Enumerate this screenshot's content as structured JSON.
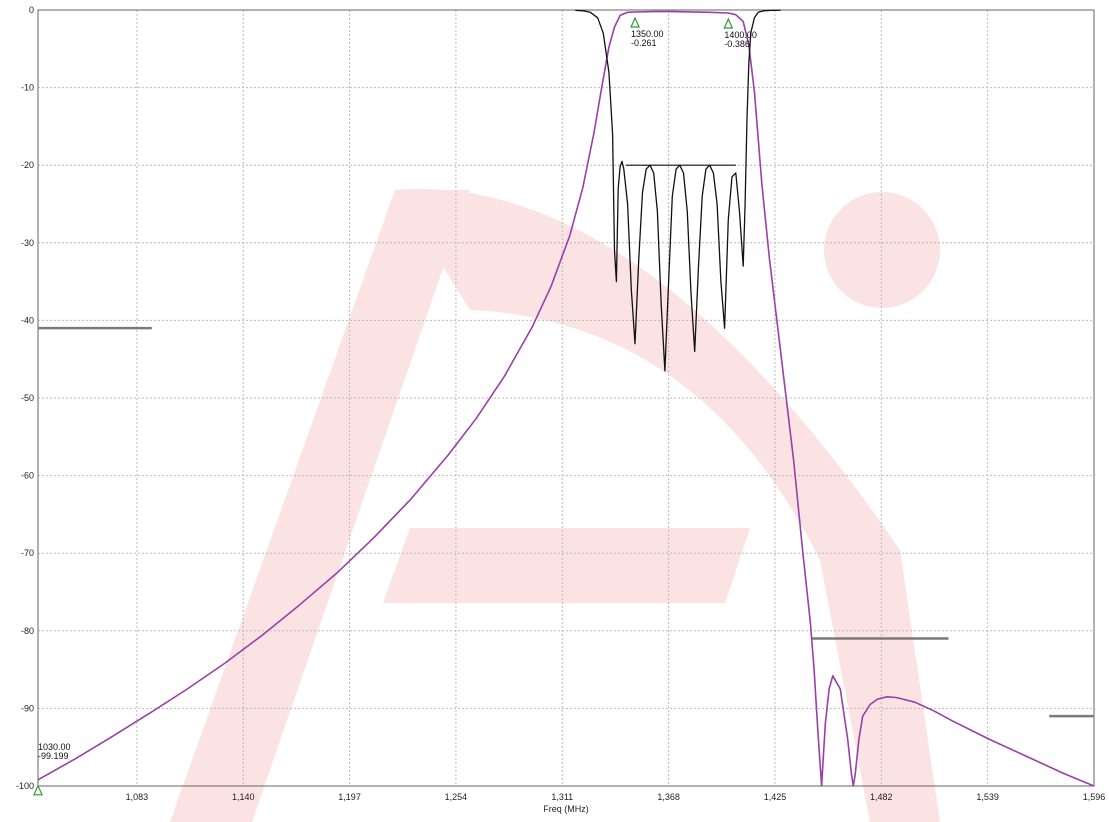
{
  "chart_data": {
    "type": "line",
    "title": "",
    "xlabel": "Freq (MHz)",
    "ylabel": "",
    "xlim": [
      1030,
      1596
    ],
    "ylim": [
      -100,
      0
    ],
    "grid": true,
    "x_ticks": [
      "1,083",
      "1,140",
      "1,197",
      "1,254",
      "1,311",
      "1,368",
      "1,425",
      "1,482",
      "1,539",
      "1,596"
    ],
    "x_tick_values": [
      1083,
      1140,
      1197,
      1254,
      1311,
      1368,
      1425,
      1482,
      1539,
      1596
    ],
    "y_ticks": [
      "0",
      "-10",
      "-20",
      "-30",
      "-40",
      "-50",
      "-60",
      "-70",
      "-80",
      "-90",
      "-100"
    ],
    "y_tick_values": [
      0,
      -10,
      -20,
      -30,
      -40,
      -50,
      -60,
      -70,
      -80,
      -90,
      -100
    ],
    "colors": {
      "transmission": "#9a3fa8",
      "reflection": "#111111",
      "spec": "#7a7a7a",
      "marker": "#2f9a2f",
      "watermark": "#fbe3e3",
      "grid": "#b9b9b9"
    },
    "series": [
      {
        "key": "transmission",
        "x": [
          1030,
          1050,
          1070,
          1090,
          1110,
          1130,
          1150,
          1170,
          1190,
          1210,
          1230,
          1250,
          1265,
          1280,
          1295,
          1305,
          1315,
          1322,
          1328,
          1332,
          1336,
          1339,
          1342,
          1346,
          1350,
          1360,
          1370,
          1380,
          1390,
          1400,
          1404,
          1408,
          1411,
          1414,
          1418,
          1422,
          1428,
          1435,
          1440,
          1444,
          1446,
          1448,
          1450,
          1452,
          1454,
          1456,
          1460,
          1464,
          1466,
          1467,
          1468,
          1470,
          1472,
          1476,
          1480,
          1485,
          1490,
          1500,
          1510,
          1520,
          1540,
          1560,
          1580,
          1596
        ],
        "y": [
          -99.2,
          -96.5,
          -93.6,
          -90.6,
          -87.5,
          -84.2,
          -80.6,
          -76.7,
          -72.6,
          -68.0,
          -63.0,
          -57.3,
          -52.6,
          -47.2,
          -40.8,
          -35.6,
          -29.1,
          -22.9,
          -15.8,
          -10.2,
          -4.8,
          -2.2,
          -0.7,
          -0.3,
          -0.26,
          -0.2,
          -0.2,
          -0.25,
          -0.3,
          -0.39,
          -0.6,
          -1.5,
          -4.5,
          -10.5,
          -22.5,
          -32.0,
          -44.0,
          -58.0,
          -70.0,
          -79.0,
          -85.0,
          -93.0,
          -100.0,
          -92.0,
          -87.5,
          -85.8,
          -87.5,
          -94.0,
          -98.5,
          -100.0,
          -98.5,
          -94.0,
          -91.0,
          -89.5,
          -88.8,
          -88.5,
          -88.6,
          -89.2,
          -90.3,
          -91.6,
          -94.0,
          -96.2,
          -98.4,
          -100.0
        ]
      },
      {
        "key": "reflection",
        "x": [
          1318,
          1322,
          1326,
          1330,
          1333,
          1336,
          1338,
          1339,
          1340,
          1341,
          1342,
          1343,
          1344,
          1346,
          1348,
          1350,
          1352,
          1354,
          1356,
          1358,
          1360,
          1362,
          1364,
          1366,
          1368,
          1370,
          1372,
          1374,
          1376,
          1378,
          1380,
          1382,
          1384,
          1386,
          1388,
          1390,
          1392,
          1394,
          1396,
          1398,
          1400,
          1402,
          1404,
          1406,
          1408,
          1409,
          1410,
          1411,
          1412,
          1414,
          1416,
          1419,
          1423,
          1428
        ],
        "y": [
          -0.05,
          -0.1,
          -0.3,
          -1.0,
          -3.0,
          -8.0,
          -16.0,
          -31.0,
          -35.0,
          -23.0,
          -20.2,
          -19.5,
          -20.5,
          -25.0,
          -36.0,
          -43.0,
          -32.0,
          -23.5,
          -20.5,
          -20.0,
          -21.0,
          -26.0,
          -38.0,
          -46.5,
          -35.0,
          -24.0,
          -20.5,
          -20.0,
          -21.0,
          -26.0,
          -36.5,
          -44.0,
          -33.0,
          -24.0,
          -20.5,
          -20.0,
          -21.0,
          -25.0,
          -35.0,
          -41.0,
          -27.0,
          -21.5,
          -21.0,
          -26.0,
          -33.0,
          -25.0,
          -14.0,
          -7.0,
          -3.0,
          -1.0,
          -0.3,
          -0.1,
          -0.05,
          -0.02
        ]
      }
    ],
    "specs": [
      {
        "kind": "spec",
        "x": [
          1030,
          1091
        ],
        "y": [
          -41,
          -41
        ]
      },
      {
        "kind": "spec",
        "x": [
          1445,
          1518
        ],
        "y": [
          -81,
          -81
        ]
      },
      {
        "kind": "spec",
        "x": [
          1572,
          1596
        ],
        "y": [
          -91,
          -91
        ]
      },
      {
        "kind": "ref",
        "x": [
          1345,
          1404
        ],
        "y": [
          -20,
          -20
        ]
      }
    ],
    "markers": [
      {
        "x": 1350,
        "y": -0.26,
        "freq_label": "1350.00",
        "val_label": "-0.261"
      },
      {
        "x": 1400,
        "y": -0.39,
        "freq_label": "1400.00",
        "val_label": "-0.386"
      },
      {
        "x": 1030,
        "y": -99.2,
        "freq_label": "1030.00",
        "val_label": "-99.199"
      }
    ]
  }
}
